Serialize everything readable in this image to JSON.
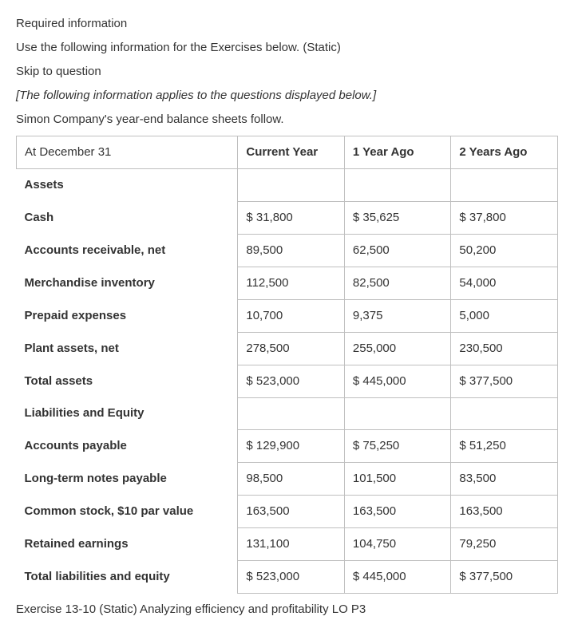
{
  "intro": {
    "required": "Required information",
    "use_following": "Use the following information for the Exercises below. (Static)",
    "skip": "Skip to question",
    "applies": "[The following information applies to the questions displayed below.]",
    "simon": "Simon Company's year-end balance sheets follow."
  },
  "table": {
    "header_label": "At December 31",
    "col_headers": [
      "Current Year",
      "1 Year Ago",
      "2 Years Ago"
    ],
    "rows": [
      {
        "label": "Assets",
        "cells": null,
        "bold": true
      },
      {
        "label": "Cash",
        "cells": [
          "$ 31,800",
          "$ 35,625",
          "$ 37,800"
        ],
        "bold": true
      },
      {
        "label": "Accounts receivable, net",
        "cells": [
          "89,500",
          "62,500",
          "50,200"
        ],
        "bold": true
      },
      {
        "label": "Merchandise inventory",
        "cells": [
          "112,500",
          "82,500",
          "54,000"
        ],
        "bold": true
      },
      {
        "label": "Prepaid expenses",
        "cells": [
          "10,700",
          "9,375",
          "5,000"
        ],
        "bold": true
      },
      {
        "label": "Plant assets, net",
        "cells": [
          "278,500",
          "255,000",
          "230,500"
        ],
        "bold": true
      },
      {
        "label": "Total assets",
        "cells": [
          "$ 523,000",
          "$ 445,000",
          "$ 377,500"
        ],
        "bold": true
      },
      {
        "label": "Liabilities and Equity",
        "cells": null,
        "bold": true
      },
      {
        "label": "Accounts payable",
        "cells": [
          "$ 129,900",
          "$ 75,250",
          "$ 51,250"
        ],
        "bold": true
      },
      {
        "label": "Long-term notes payable",
        "cells": [
          "98,500",
          "101,500",
          "83,500"
        ],
        "bold": true
      },
      {
        "label": "Common stock, $10 par value",
        "cells": [
          "163,500",
          "163,500",
          "163,500"
        ],
        "bold": true
      },
      {
        "label": "Retained earnings",
        "cells": [
          "131,100",
          "104,750",
          "79,250"
        ],
        "bold": true
      },
      {
        "label": "Total liabilities and equity",
        "cells": [
          "$ 523,000",
          "$ 445,000",
          "$ 377,500"
        ],
        "bold": true
      }
    ]
  },
  "footer": "Exercise 13-10 (Static) Analyzing efficiency and profitability LO P3",
  "style": {
    "border_color": "#bfbfbf",
    "text_color": "#333333",
    "background": "#ffffff",
    "font_family": "Arial",
    "base_font_size_pt": 11
  }
}
